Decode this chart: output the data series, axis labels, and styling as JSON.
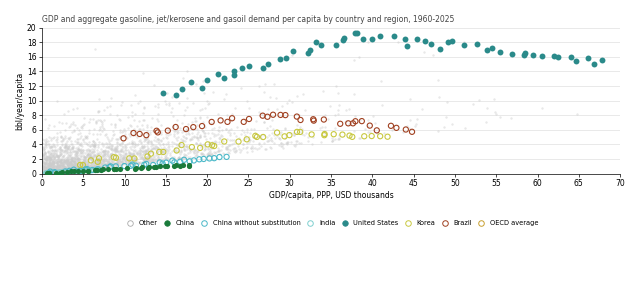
{
  "title": "GDP and aggregate gasoline, jet/kerosene and gasoil demand per capita by country and region, 1960-2025",
  "xlabel": "GDP/capita, PPP, USD thousands",
  "ylabel": "bbl/year/capita",
  "xlim": [
    0,
    70
  ],
  "ylim": [
    0,
    20
  ],
  "yticks": [
    0,
    2,
    4,
    6,
    8,
    10,
    12,
    14,
    16,
    18,
    20
  ],
  "xticks": [
    0,
    5,
    10,
    15,
    20,
    25,
    30,
    35,
    40,
    45,
    50,
    55,
    60,
    65,
    70
  ],
  "background_color": "#ffffff",
  "other_color": "#cccccc",
  "china_color": "#1a7a3a",
  "china_nosub_color": "#4ab8c8",
  "india_color": "#7ecfcf",
  "us_color": "#2a8a8a",
  "korea_color": "#c8c840",
  "brazil_color": "#a04020",
  "oecd_color": "#c8a030"
}
